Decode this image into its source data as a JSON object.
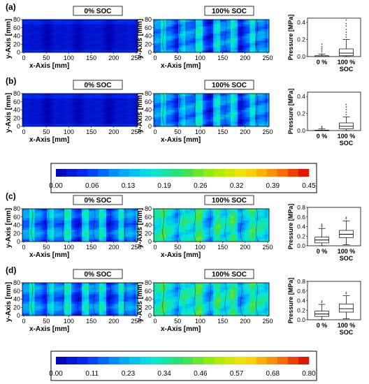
{
  "figure": {
    "soc_labels": [
      "0% SOC",
      "100% SOC"
    ],
    "x_axis_label": "x-Axis [mm]",
    "y_axis_label": "y-Axis [mm]",
    "pressure_label": "Pressure [MPa]",
    "box_categories": [
      "0 %",
      "100 %"
    ],
    "box_category_sub": "SOC"
  },
  "chart_data": [
    {
      "panel": "(a)",
      "type": "heatmap",
      "colorbar": "top",
      "maps": [
        {
          "label": "0% SOC",
          "level": "low"
        },
        {
          "label": "100% SOC",
          "level": "high"
        }
      ],
      "xticks": [
        0,
        50,
        100,
        150,
        200,
        250
      ],
      "yticks": [
        0,
        20,
        40,
        60,
        80
      ],
      "boxplot": {
        "type": "box",
        "ylim": [
          0,
          0.45
        ],
        "yticks": [
          "0.0",
          "0.2",
          "0.4"
        ],
        "boxes": [
          {
            "category": "0 %",
            "min": 0.0,
            "q1": 0.0,
            "median": 0.0,
            "q3": 0.01,
            "max": 0.03,
            "outliers": [
              0.05,
              0.07,
              0.09,
              0.11,
              0.14
            ]
          },
          {
            "category": "100 %",
            "min": 0.0,
            "q1": 0.01,
            "median": 0.04,
            "q3": 0.09,
            "max": 0.2,
            "outliers": [
              0.22,
              0.25,
              0.28,
              0.31,
              0.35,
              0.38,
              0.42
            ]
          }
        ]
      }
    },
    {
      "panel": "(b)",
      "type": "heatmap",
      "colorbar": "top",
      "maps": [
        {
          "label": "0% SOC",
          "level": "low"
        },
        {
          "label": "100% SOC",
          "level": "high"
        }
      ],
      "xticks": [
        0,
        50,
        100,
        150,
        200,
        250
      ],
      "yticks": [
        0,
        20,
        40,
        60,
        80
      ],
      "boxplot": {
        "type": "box",
        "ylim": [
          0,
          0.45
        ],
        "yticks": [
          "0.0",
          "0.2",
          "0.4"
        ],
        "boxes": [
          {
            "category": "0 %",
            "min": 0.0,
            "q1": 0.0,
            "median": 0.0,
            "q3": 0.005,
            "max": 0.02,
            "outliers": [
              0.03,
              0.04
            ]
          },
          {
            "category": "100 %",
            "min": 0.0,
            "q1": 0.02,
            "median": 0.05,
            "q3": 0.09,
            "max": 0.16,
            "outliers": [
              0.18,
              0.21,
              0.24,
              0.27,
              0.3
            ]
          }
        ]
      }
    },
    {
      "panel": "(c)",
      "type": "heatmap",
      "colorbar": "bottom",
      "maps": [
        {
          "label": "0% SOC",
          "level": "mid"
        },
        {
          "label": "100% SOC",
          "level": "midhigh"
        }
      ],
      "xticks": [
        0,
        50,
        100,
        150,
        200,
        250
      ],
      "yticks": [
        0,
        20,
        40,
        60,
        80
      ],
      "boxplot": {
        "type": "box",
        "ylim": [
          0,
          0.8
        ],
        "yticks": [
          "0.0",
          "0.2",
          "0.4",
          "0.6",
          "0.8"
        ],
        "boxes": [
          {
            "category": "0 %",
            "min": 0.0,
            "q1": 0.06,
            "median": 0.12,
            "q3": 0.18,
            "max": 0.36,
            "outliers": [
              0.38,
              0.41,
              0.44
            ]
          },
          {
            "category": "100 %",
            "min": 0.02,
            "q1": 0.17,
            "median": 0.24,
            "q3": 0.32,
            "max": 0.52,
            "outliers": [
              0.55,
              0.58
            ]
          }
        ]
      }
    },
    {
      "panel": "(d)",
      "type": "heatmap",
      "colorbar": "bottom",
      "maps": [
        {
          "label": "0% SOC",
          "level": "mid"
        },
        {
          "label": "100% SOC",
          "level": "midhigh"
        }
      ],
      "xticks": [
        0,
        50,
        100,
        150,
        200,
        250
      ],
      "yticks": [
        0,
        20,
        40,
        60,
        80
      ],
      "boxplot": {
        "type": "box",
        "ylim": [
          0,
          0.8
        ],
        "yticks": [
          "0.0",
          "0.2",
          "0.4",
          "0.6",
          "0.8"
        ],
        "boxes": [
          {
            "category": "0 %",
            "min": 0.0,
            "q1": 0.07,
            "median": 0.12,
            "q3": 0.18,
            "max": 0.32,
            "outliers": [
              0.35,
              0.38
            ]
          },
          {
            "category": "100 %",
            "min": 0.02,
            "q1": 0.16,
            "median": 0.23,
            "q3": 0.33,
            "max": 0.5,
            "outliers": [
              0.53,
              0.56
            ]
          }
        ]
      }
    }
  ],
  "colorbars": [
    {
      "ticks": [
        "0.00",
        "0.06",
        "0.13",
        "0.19",
        "0.26",
        "0.32",
        "0.39",
        "0.45"
      ]
    },
    {
      "ticks": [
        "0.00",
        "0.11",
        "0.23",
        "0.34",
        "0.46",
        "0.57",
        "0.68",
        "0.80"
      ]
    }
  ],
  "colors": {
    "scale": [
      "#0000b0",
      "#0030ff",
      "#00a0ff",
      "#00e8e0",
      "#30e060",
      "#a0ee00",
      "#ffe000",
      "#ff8000",
      "#e00000"
    ]
  }
}
